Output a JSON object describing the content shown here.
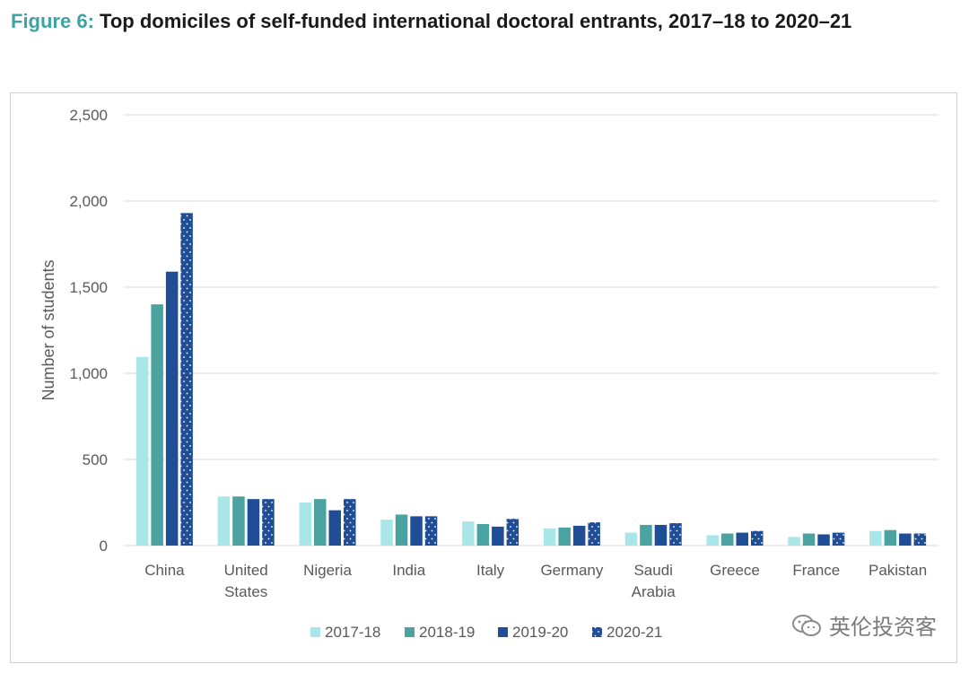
{
  "title": {
    "label": "Figure 6:",
    "text": "Top domiciles of self-funded international doctoral entrants, 2017–18 to 2020–21"
  },
  "watermark": {
    "text": "英伦投资客",
    "icon": "wechat-icon"
  },
  "colors": {
    "2017-18": "#a8e6e8",
    "2018-19": "#4aa3a0",
    "2019-20": "#1f4e96",
    "2020-21": "#1f4e96",
    "grid": "#d9d9d9",
    "title_label": "#3fa3a3"
  },
  "chart_data": {
    "type": "bar",
    "title": "Top domiciles of self-funded international doctoral entrants, 2017–18 to 2020–21",
    "xlabel": "",
    "ylabel": "Number of students",
    "ylim": [
      0,
      2500
    ],
    "yticks": [
      0,
      500,
      1000,
      1500,
      2000,
      2500
    ],
    "ytick_labels": [
      "0",
      "500",
      "1,000",
      "1,500",
      "2,000",
      "2,500"
    ],
    "grid": true,
    "legend_position": "bottom",
    "categories": [
      "China",
      "United States",
      "Nigeria",
      "India",
      "Italy",
      "Germany",
      "Saudi Arabia",
      "Greece",
      "France",
      "Pakistan"
    ],
    "category_lines": [
      [
        "China"
      ],
      [
        "United",
        "States"
      ],
      [
        "Nigeria"
      ],
      [
        "India"
      ],
      [
        "Italy"
      ],
      [
        "Germany"
      ],
      [
        "Saudi",
        "Arabia"
      ],
      [
        "Greece"
      ],
      [
        "France"
      ],
      [
        "Pakistan"
      ]
    ],
    "series": [
      {
        "name": "2017-18",
        "pattern": "solid",
        "values": [
          1095,
          285,
          250,
          150,
          140,
          100,
          75,
          60,
          50,
          85
        ]
      },
      {
        "name": "2018-19",
        "pattern": "solid",
        "values": [
          1400,
          285,
          270,
          180,
          125,
          105,
          120,
          70,
          70,
          90
        ]
      },
      {
        "name": "2019-20",
        "pattern": "solid",
        "values": [
          1590,
          270,
          205,
          170,
          110,
          115,
          120,
          75,
          65,
          70
        ]
      },
      {
        "name": "2020-21",
        "pattern": "dotted",
        "values": [
          1930,
          270,
          270,
          170,
          155,
          135,
          130,
          85,
          75,
          70
        ]
      }
    ]
  }
}
